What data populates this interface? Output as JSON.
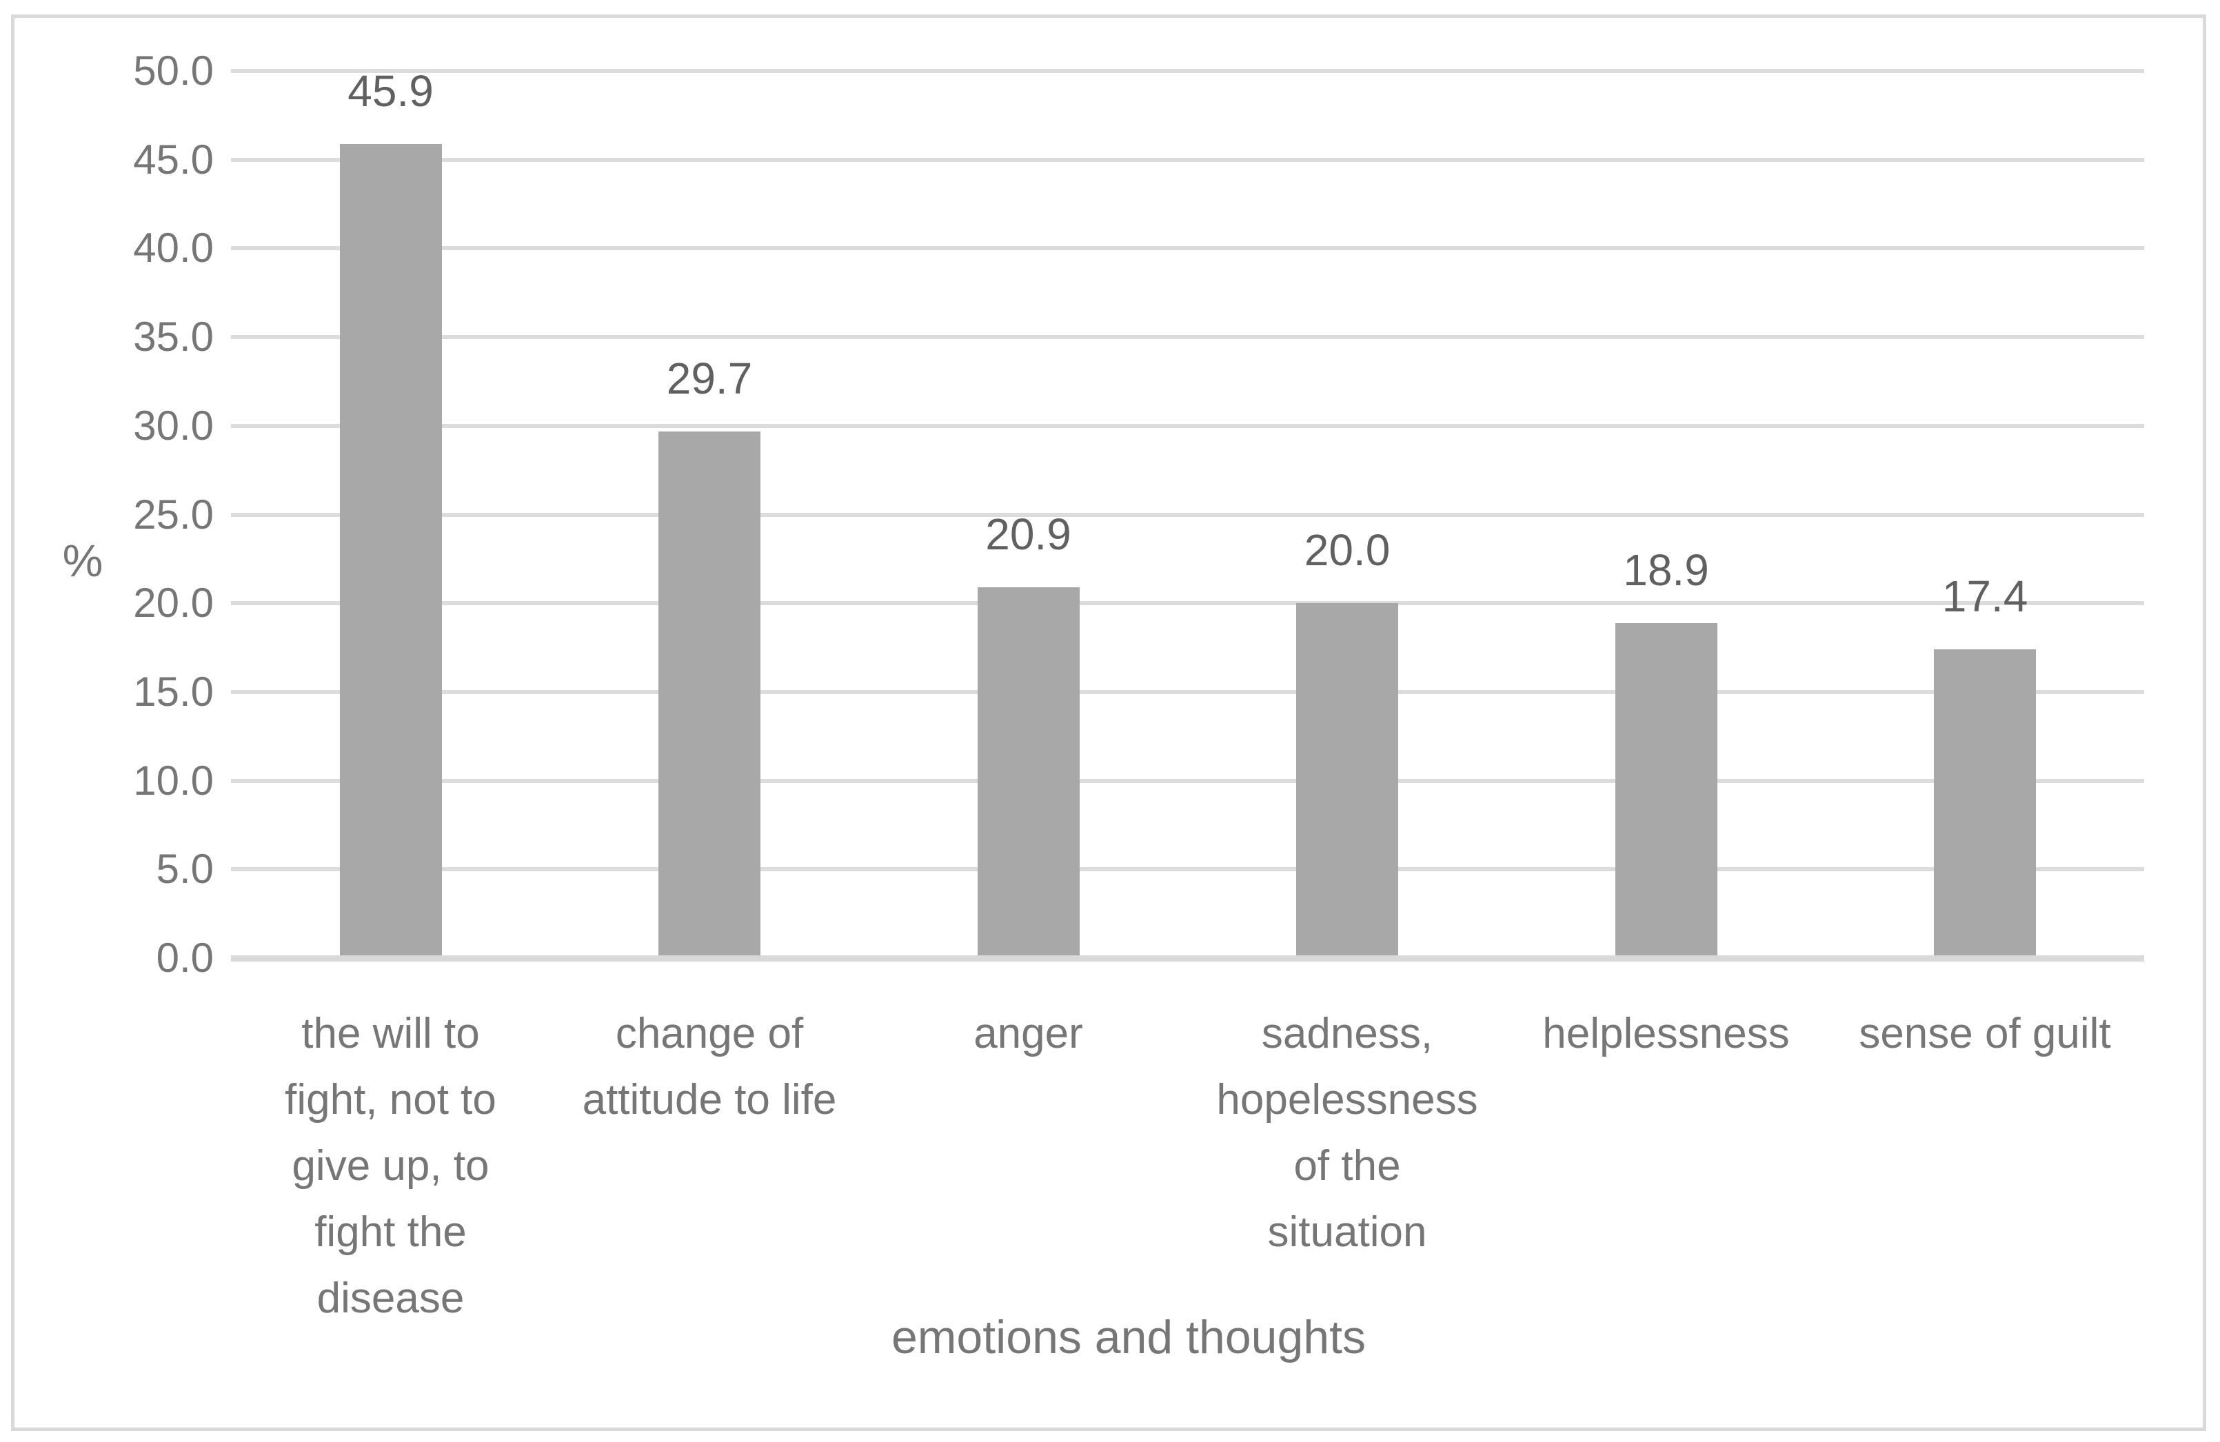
{
  "chart_data": {
    "type": "bar",
    "title": "",
    "xlabel": "emotions and thoughts",
    "ylabel": "%",
    "categories": [
      "the will to fight, not to give up, to fight the disease",
      "change of attitude to life",
      "anger",
      "sadness, hopelessness of the situation",
      "helplessness",
      "sense of guilt"
    ],
    "category_display_lines": [
      [
        "the will to",
        "fight, not to",
        "give up, to",
        "fight the",
        "disease"
      ],
      [
        "change of",
        "attitude to life"
      ],
      [
        "anger"
      ],
      [
        "sadness,",
        "hopelessness",
        "of the",
        "situation"
      ],
      [
        "helplessness"
      ],
      [
        "sense of guilt"
      ]
    ],
    "values": [
      45.9,
      29.7,
      20.9,
      20.0,
      18.9,
      17.4
    ],
    "data_labels": [
      "45.9",
      "29.7",
      "20.9",
      "20.0",
      "18.9",
      "17.4"
    ],
    "ylim": [
      0,
      50
    ],
    "y_tick_step": 5,
    "y_tick_labels": [
      "0.0",
      "5.0",
      "10.0",
      "15.0",
      "20.0",
      "25.0",
      "30.0",
      "35.0",
      "40.0",
      "45.0",
      "50.0"
    ],
    "grid": "horizontal",
    "legend": "none",
    "colors": {
      "bar": "#a8a8a8",
      "gridline": "#dcdcdc",
      "axis_line": "#d9d9d9",
      "border": "#d9d9d9",
      "tick_text": "#767676",
      "data_label_text": "#606060",
      "background": "#ffffff"
    }
  }
}
